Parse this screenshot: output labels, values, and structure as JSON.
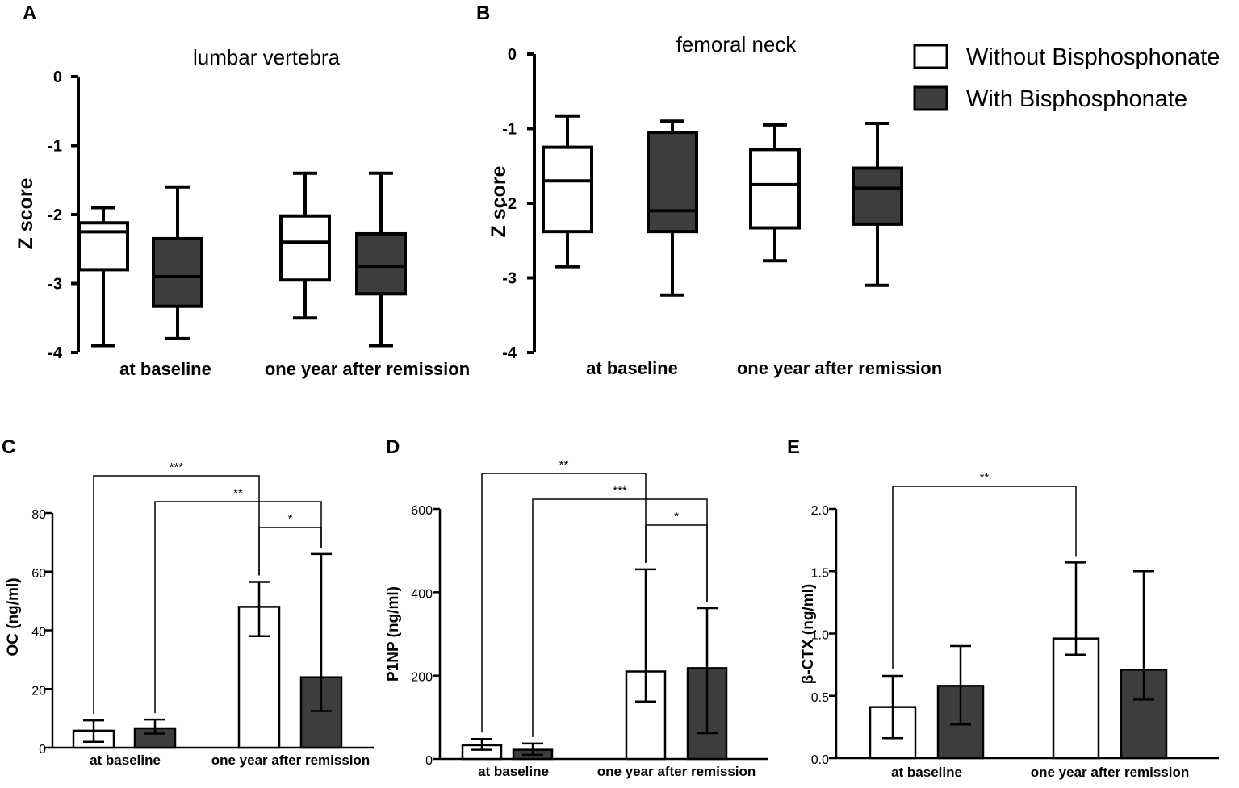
{
  "colors": {
    "without": "#ffffff",
    "with": "#3d3d3d",
    "stroke": "#000000"
  },
  "legend": {
    "without_label": "Without Bisphosphonate",
    "with_label": "With Bisphosphonate",
    "placement": "top-right"
  },
  "chart_data": [
    {
      "id": "A",
      "panel_label": "A",
      "type": "box",
      "title": "lumbar vertebra",
      "ylabel": "Z score",
      "xlabel": "",
      "ylim": [
        -4,
        0
      ],
      "yticks": [
        0,
        -1,
        -2,
        -3,
        -4
      ],
      "categories": [
        "at baseline",
        "one year after remission"
      ],
      "series": [
        {
          "name": "Without Bisphosphonate",
          "boxes": [
            {
              "min": -3.9,
              "q1": -2.8,
              "median": -2.25,
              "q3": -2.12,
              "max": -1.9
            },
            {
              "min": -3.5,
              "q1": -2.95,
              "median": -2.4,
              "q3": -2.02,
              "max": -1.4
            }
          ]
        },
        {
          "name": "With Bisphosphonate",
          "boxes": [
            {
              "min": -3.8,
              "q1": -3.33,
              "median": -2.9,
              "q3": -2.35,
              "max": -1.6
            },
            {
              "min": -3.9,
              "q1": -3.15,
              "median": -2.75,
              "q3": -2.28,
              "max": -1.4
            }
          ]
        }
      ]
    },
    {
      "id": "B",
      "panel_label": "B",
      "type": "box",
      "title": "femoral neck",
      "ylabel": "Z score",
      "xlabel": "",
      "ylim": [
        -4,
        0
      ],
      "yticks": [
        0,
        -1,
        -2,
        -3,
        -4
      ],
      "categories": [
        "at baseline",
        "one year after remission"
      ],
      "series": [
        {
          "name": "Without Bisphosphonate",
          "boxes": [
            {
              "min": -2.85,
              "q1": -2.38,
              "median": -1.7,
              "q3": -1.25,
              "max": -0.83
            },
            {
              "min": -2.77,
              "q1": -2.33,
              "median": -1.75,
              "q3": -1.28,
              "max": -0.95
            }
          ]
        },
        {
          "name": "With Bisphosphonate",
          "boxes": [
            {
              "min": -3.23,
              "q1": -2.38,
              "median": -2.1,
              "q3": -1.05,
              "max": -0.9
            },
            {
              "min": -3.1,
              "q1": -2.28,
              "median": -1.8,
              "q3": -1.53,
              "max": -0.93
            }
          ]
        }
      ]
    },
    {
      "id": "C",
      "panel_label": "C",
      "type": "bar",
      "title": "",
      "ylabel": "OC (ng/ml)",
      "xlabel": "",
      "ylim": [
        0,
        80
      ],
      "yticks": [
        0,
        20,
        40,
        60,
        80
      ],
      "categories": [
        "at baseline",
        "one year after remission"
      ],
      "series": [
        {
          "name": "Without Bisphosphonate",
          "values": [
            5.8,
            48
          ],
          "err_low": [
            2,
            38
          ],
          "err_high": [
            9.3,
            56.5
          ]
        },
        {
          "name": "With Bisphosphonate",
          "values": [
            6.6,
            24
          ],
          "err_low": [
            4.8,
            12.5
          ],
          "err_high": [
            9.6,
            66
          ]
        }
      ],
      "significance": [
        {
          "from": [
            0,
            0
          ],
          "to": [
            1,
            0
          ],
          "label": "***"
        },
        {
          "from": [
            0,
            1
          ],
          "to": [
            1,
            1
          ],
          "label": "**"
        },
        {
          "from": [
            1,
            0
          ],
          "to": [
            1,
            1
          ],
          "label": "*"
        }
      ]
    },
    {
      "id": "D",
      "panel_label": "D",
      "type": "bar",
      "title": "",
      "ylabel": "P1NP (ng/ml)",
      "xlabel": "",
      "ylim": [
        0,
        600
      ],
      "yticks": [
        0,
        200,
        400,
        600
      ],
      "categories": [
        "at baseline",
        "one year after remission"
      ],
      "series": [
        {
          "name": "Without Bisphosphonate",
          "values": [
            33,
            210
          ],
          "err_low": [
            22,
            138
          ],
          "err_high": [
            48,
            455
          ]
        },
        {
          "name": "With Bisphosphonate",
          "values": [
            22,
            218
          ],
          "err_low": [
            10,
            62
          ],
          "err_high": [
            37,
            362
          ]
        }
      ],
      "significance": [
        {
          "from": [
            0,
            0
          ],
          "to": [
            1,
            0
          ],
          "label": "**"
        },
        {
          "from": [
            0,
            1
          ],
          "to": [
            1,
            1
          ],
          "label": "***"
        },
        {
          "from": [
            1,
            0
          ],
          "to": [
            1,
            1
          ],
          "label": "*"
        }
      ]
    },
    {
      "id": "E",
      "panel_label": "E",
      "type": "bar",
      "title": "",
      "ylabel": "β-CTX (ng/ml)",
      "xlabel": "",
      "ylim": [
        0,
        2.0
      ],
      "yticks": [
        0.0,
        0.5,
        1.0,
        1.5,
        2.0
      ],
      "categories": [
        "at baseline",
        "one year after remission"
      ],
      "series": [
        {
          "name": "Without Bisphosphonate",
          "values": [
            0.41,
            0.96
          ],
          "err_low": [
            0.16,
            0.83
          ],
          "err_high": [
            0.66,
            1.57
          ]
        },
        {
          "name": "With Bisphosphonate",
          "values": [
            0.58,
            0.71
          ],
          "err_low": [
            0.27,
            0.47
          ],
          "err_high": [
            0.9,
            1.5
          ]
        }
      ],
      "significance": [
        {
          "from": [
            0,
            0
          ],
          "to": [
            1,
            0
          ],
          "label": "**"
        }
      ]
    }
  ]
}
